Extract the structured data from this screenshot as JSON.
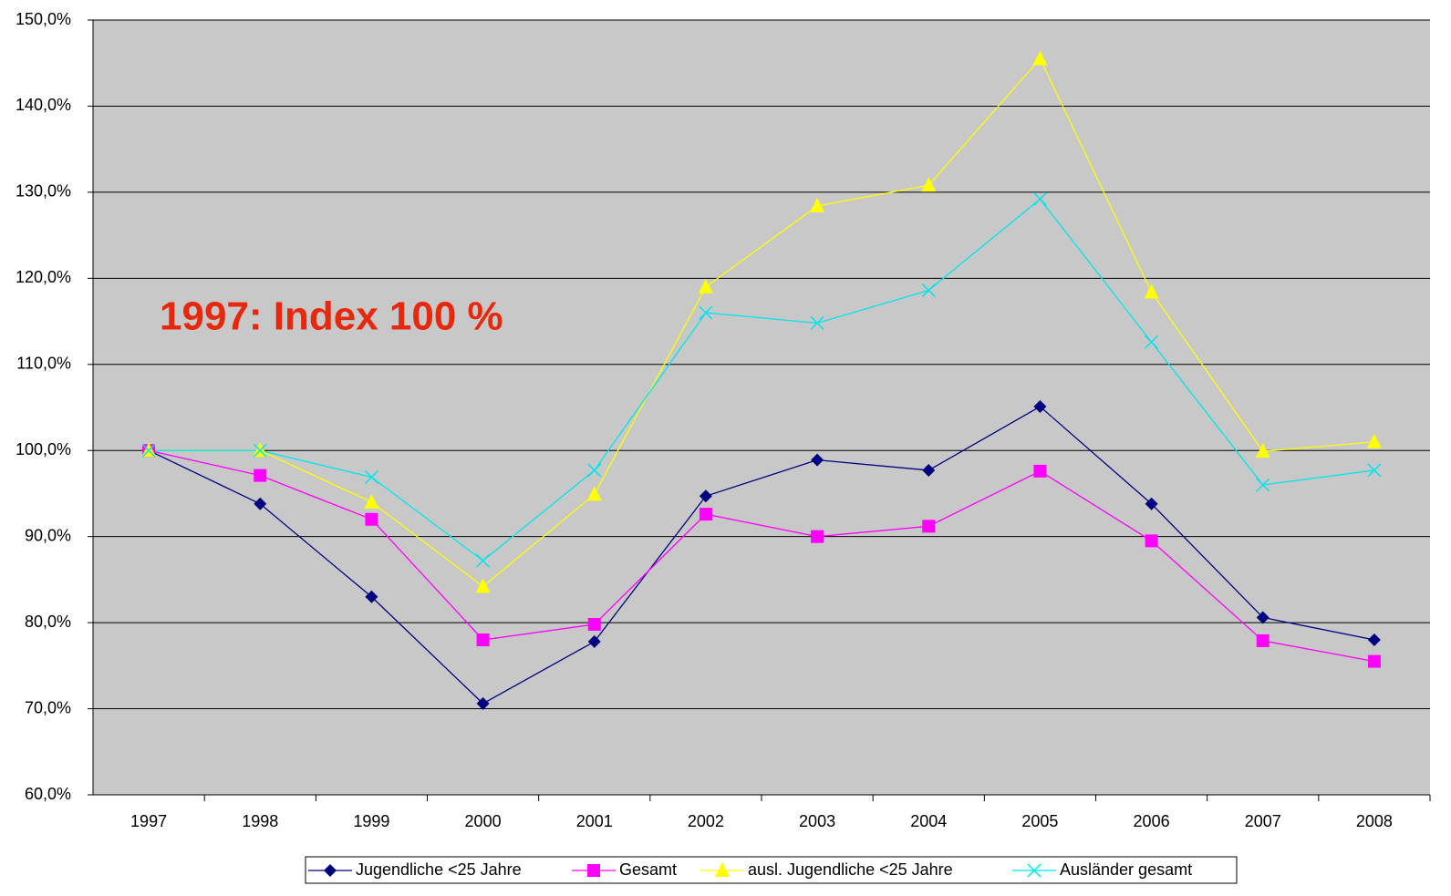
{
  "chart_data": {
    "type": "line",
    "annotation": "1997: Index 100 %",
    "categories": [
      "1997",
      "1998",
      "1999",
      "2000",
      "2001",
      "2002",
      "2003",
      "2004",
      "2005",
      "2006",
      "2007",
      "2008"
    ],
    "series": [
      {
        "name": "Jugendliche <25 Jahre",
        "color": "#000080",
        "marker": "diamond",
        "values": [
          100,
          93.8,
          83.0,
          70.6,
          77.8,
          94.7,
          98.9,
          97.7,
          105.1,
          93.8,
          80.6,
          78.0
        ]
      },
      {
        "name": "Gesamt",
        "color": "#ff00ff",
        "marker": "square",
        "values": [
          100,
          97.1,
          92.0,
          78.0,
          79.8,
          92.6,
          90.0,
          91.2,
          97.6,
          89.5,
          77.9,
          75.5
        ]
      },
      {
        "name": "ausl. Jugendliche <25 Jahre",
        "color": "#ffff00",
        "marker": "triangle",
        "values": [
          100,
          100,
          94.0,
          84.2,
          94.9,
          119.0,
          128.4,
          130.8,
          145.5,
          118.4,
          99.9,
          101.0
        ]
      },
      {
        "name": "Ausländer gesamt",
        "color": "#00e5ee",
        "marker": "x",
        "values": [
          100,
          100,
          96.9,
          87.2,
          97.7,
          116.0,
          114.8,
          118.6,
          129.2,
          112.6,
          96.0,
          97.7
        ]
      }
    ],
    "ylim": [
      60,
      150
    ],
    "yticks": [
      {
        "value": 60,
        "label": "60,0%"
      },
      {
        "value": 70,
        "label": "70,0%"
      },
      {
        "value": 80,
        "label": "80,0%"
      },
      {
        "value": 90,
        "label": "90,0%"
      },
      {
        "value": 100,
        "label": "100,0%"
      },
      {
        "value": 110,
        "label": "110,0%"
      },
      {
        "value": 120,
        "label": "120,0%"
      },
      {
        "value": 130,
        "label": "130,0%"
      },
      {
        "value": 140,
        "label": "140,0%"
      },
      {
        "value": 150,
        "label": "150,0%"
      }
    ],
    "grid": true,
    "legend": "bottom"
  }
}
